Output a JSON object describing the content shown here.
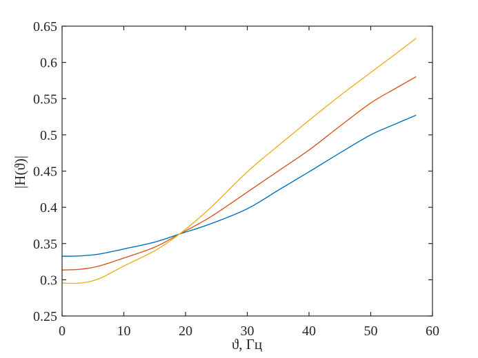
{
  "figure": {
    "background": "#ffffff"
  },
  "chart_data": {
    "type": "line",
    "title": "",
    "xlabel": "ϑ, Гц",
    "ylabel": "|H(ϑ)|",
    "xlim": [
      0,
      60
    ],
    "ylim": [
      0.25,
      0.65
    ],
    "xticks": [
      0,
      10,
      20,
      30,
      40,
      50,
      60
    ],
    "xtick_labels": [
      "0",
      "10",
      "20",
      "30",
      "40",
      "50",
      "60"
    ],
    "yticks": [
      0.25,
      0.3,
      0.35,
      0.4,
      0.45,
      0.5,
      0.55,
      0.6,
      0.65
    ],
    "ytick_labels": [
      "0.25",
      "0.3",
      "0.35",
      "0.4",
      "0.45",
      "0.5",
      "0.55",
      "0.6",
      "0.65"
    ],
    "grid": false,
    "legend": "none",
    "frame": "box with inward tick marks mirrored on all four sides",
    "axis_color": "#262626",
    "crossing_point": [
      19,
      0.363
    ],
    "x_data_range": [
      0,
      57.3
    ],
    "series": [
      {
        "name": "blue-curve",
        "color": "#0072BD",
        "points": [
          [
            0,
            0.3325
          ],
          [
            3,
            0.333
          ],
          [
            6,
            0.3355
          ],
          [
            10,
            0.3425
          ],
          [
            15,
            0.352
          ],
          [
            19,
            0.363
          ],
          [
            24,
            0.377
          ],
          [
            30,
            0.398
          ],
          [
            35,
            0.4235
          ],
          [
            40,
            0.449
          ],
          [
            45,
            0.475
          ],
          [
            50,
            0.5
          ],
          [
            54,
            0.515
          ],
          [
            57.3,
            0.527
          ]
        ]
      },
      {
        "name": "red-curve",
        "color": "#D95319",
        "points": [
          [
            0,
            0.3135
          ],
          [
            3,
            0.3145
          ],
          [
            6,
            0.319
          ],
          [
            10,
            0.33
          ],
          [
            15,
            0.345
          ],
          [
            19,
            0.363
          ],
          [
            24,
            0.3865
          ],
          [
            30,
            0.421
          ],
          [
            35,
            0.45
          ],
          [
            40,
            0.479
          ],
          [
            45,
            0.512
          ],
          [
            50,
            0.544
          ],
          [
            54,
            0.564
          ],
          [
            57.3,
            0.58
          ]
        ]
      },
      {
        "name": "yellow-curve",
        "color": "#EDB120",
        "points": [
          [
            0,
            0.2955
          ],
          [
            3,
            0.2955
          ],
          [
            6,
            0.3015
          ],
          [
            10,
            0.319
          ],
          [
            15,
            0.34
          ],
          [
            19,
            0.363
          ],
          [
            24,
            0.399
          ],
          [
            30,
            0.449
          ],
          [
            35,
            0.485
          ],
          [
            40,
            0.52
          ],
          [
            45,
            0.554
          ],
          [
            50,
            0.586
          ],
          [
            54,
            0.6115
          ],
          [
            57.3,
            0.633
          ]
        ]
      }
    ]
  }
}
